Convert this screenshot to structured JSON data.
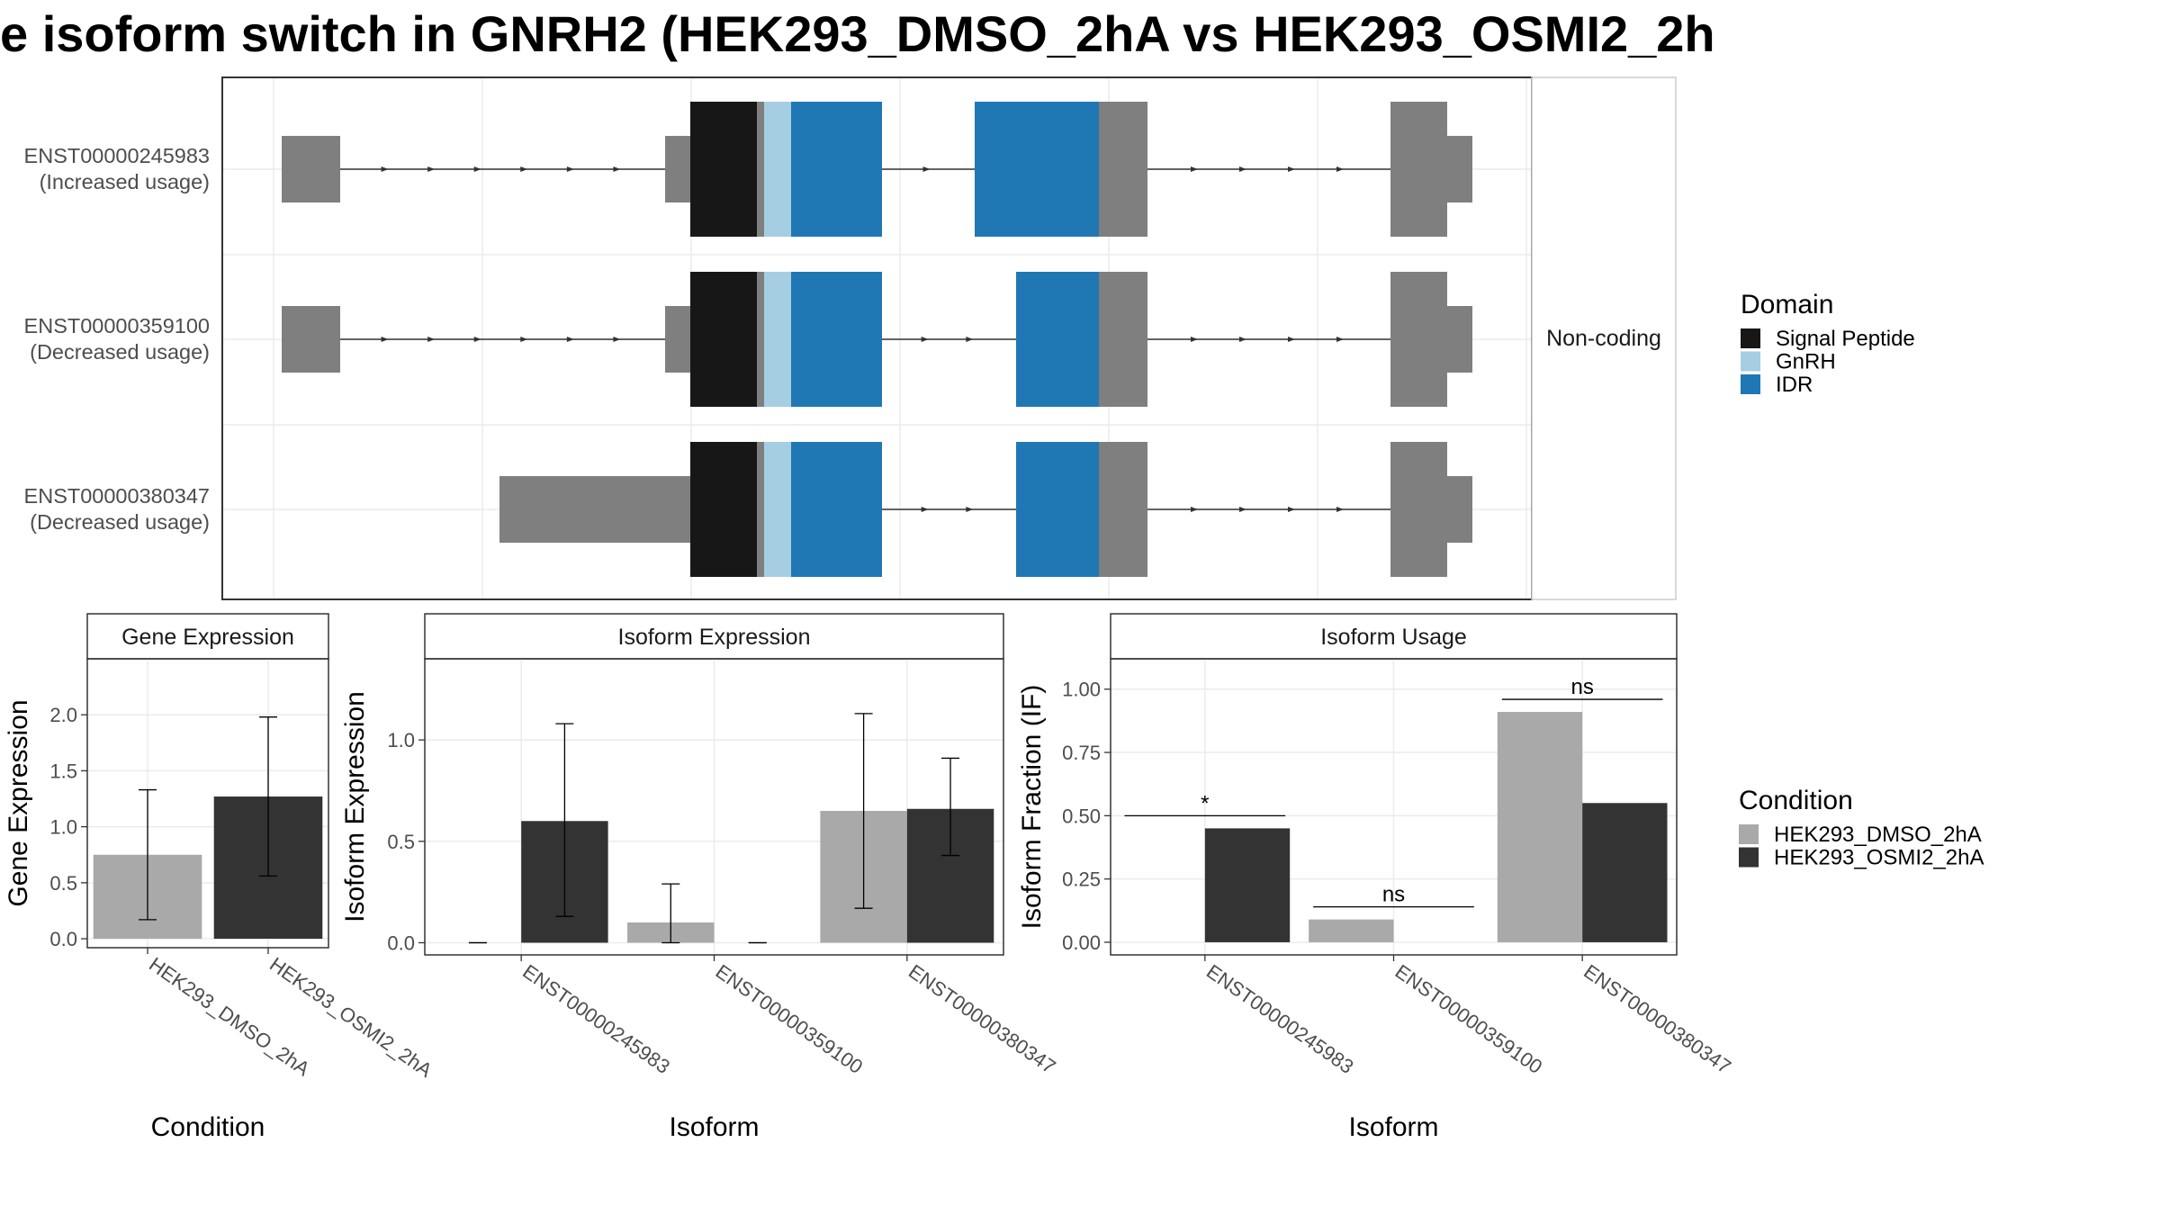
{
  "title": "e isoform switch in GNRH2 (HEK293_DMSO_2hA vs HEK293_OSMI2_2h",
  "colors": {
    "utr": "#7f7f7f",
    "signal_peptide": "#171717",
    "gnrh": "#a6cee3",
    "idr": "#1f78b4",
    "dmso": "#a9a9a9",
    "osmi": "#333333",
    "grid": "#ebebeb",
    "panel_border": "#333333"
  },
  "chart_data": [
    {
      "type": "gene-structure",
      "facet_label": "Non-coding",
      "transcripts": [
        {
          "id": "ENST00000245983",
          "usage": "(Increased usage)"
        },
        {
          "id": "ENST00000359100",
          "usage": "(Decreased usage)"
        },
        {
          "id": "ENST00000380347",
          "usage": "(Decreased usage)"
        }
      ],
      "legend": {
        "title": "Domain",
        "items": [
          {
            "label": "Signal Peptide",
            "color": "#171717"
          },
          {
            "label": "GnRH",
            "color": "#a6cee3"
          },
          {
            "label": "IDR",
            "color": "#1f78b4"
          }
        ]
      }
    },
    {
      "type": "bar",
      "title": "Gene Expression",
      "xlabel": "Condition",
      "ylabel": "Gene Expression",
      "categories": [
        "HEK293_DMSO_2hA",
        "HEK293_OSMI2_2hA"
      ],
      "values": [
        0.75,
        1.27
      ],
      "errors": [
        [
          0.17,
          1.33
        ],
        [
          0.56,
          1.98
        ]
      ],
      "ylim": [
        -0.08,
        2.5
      ],
      "yticks": [
        "0.0",
        "0.5",
        "1.0",
        "1.5",
        "2.0"
      ]
    },
    {
      "type": "bar",
      "title": "Isoform Expression",
      "xlabel": "Isoform",
      "ylabel": "Isoform Expression",
      "categories": [
        "ENST00000245983",
        "ENST00000359100",
        "ENST00000380347"
      ],
      "series": [
        {
          "name": "HEK293_DMSO_2hA",
          "values": [
            0.0,
            0.1,
            0.65
          ],
          "errors": [
            [
              0.0,
              0.0
            ],
            [
              0.0,
              0.29
            ],
            [
              0.17,
              1.13
            ]
          ]
        },
        {
          "name": "HEK293_OSMI2_2hA",
          "values": [
            0.6,
            0.0,
            0.66
          ],
          "errors": [
            [
              0.13,
              1.08
            ],
            [
              0.0,
              0.0
            ],
            [
              0.43,
              0.91
            ]
          ]
        }
      ],
      "ylim": [
        -0.06,
        1.4
      ],
      "yticks": [
        "0.0",
        "0.5",
        "1.0"
      ]
    },
    {
      "type": "bar",
      "title": "Isoform Usage",
      "xlabel": "Isoform",
      "ylabel": "Isoform Fraction (IF)",
      "categories": [
        "ENST00000245983",
        "ENST00000359100",
        "ENST00000380347"
      ],
      "series": [
        {
          "name": "HEK293_DMSO_2hA",
          "values": [
            0.0,
            0.09,
            0.91
          ]
        },
        {
          "name": "HEK293_OSMI2_2hA",
          "values": [
            0.45,
            0.0,
            0.55
          ]
        }
      ],
      "significance": [
        "*",
        "ns",
        "ns"
      ],
      "ylim": [
        -0.05,
        1.12
      ],
      "yticks": [
        "0.00",
        "0.25",
        "0.50",
        "0.75",
        "1.00"
      ],
      "legend": {
        "title": "Condition",
        "items": [
          {
            "label": "HEK293_DMSO_2hA",
            "color": "#a9a9a9"
          },
          {
            "label": "HEK293_OSMI2_2hA",
            "color": "#333333"
          }
        ]
      }
    }
  ]
}
